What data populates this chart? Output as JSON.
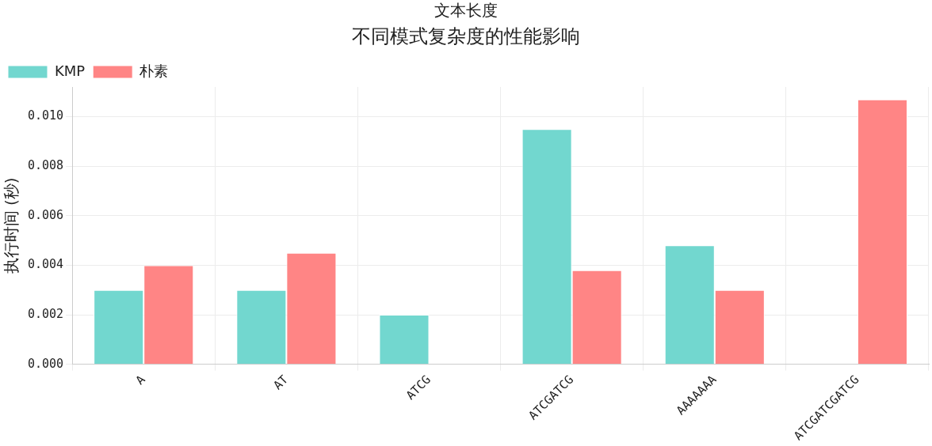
{
  "chart_data": {
    "type": "bar",
    "subtitle": "文本长度",
    "title": "不同模式复杂度的性能影响",
    "ylabel": "执行时间 (秒)",
    "categories": [
      "A",
      "AT",
      "ATCG",
      "ATCGATCG",
      "AAAAAAA",
      "ATCGATCGATCG"
    ],
    "series": [
      {
        "name": "KMP",
        "color": "#72d7cf",
        "values": [
          0.003,
          0.003,
          0.002,
          0.0095,
          0.0048,
          0
        ]
      },
      {
        "name": "朴素",
        "color": "#ff8585",
        "values": [
          0.004,
          0.0045,
          0,
          0.0038,
          0.003,
          0.0107
        ]
      }
    ],
    "ylim": [
      0,
      0.0112
    ],
    "yticks": [
      {
        "value": 0,
        "label": "0.000"
      },
      {
        "value": 0.002,
        "label": "0.002"
      },
      {
        "value": 0.004,
        "label": "0.004"
      },
      {
        "value": 0.006,
        "label": "0.006"
      },
      {
        "value": 0.008,
        "label": "0.008"
      },
      {
        "value": 0.01,
        "label": "0.010"
      }
    ],
    "grid": true,
    "legend": "top left"
  }
}
